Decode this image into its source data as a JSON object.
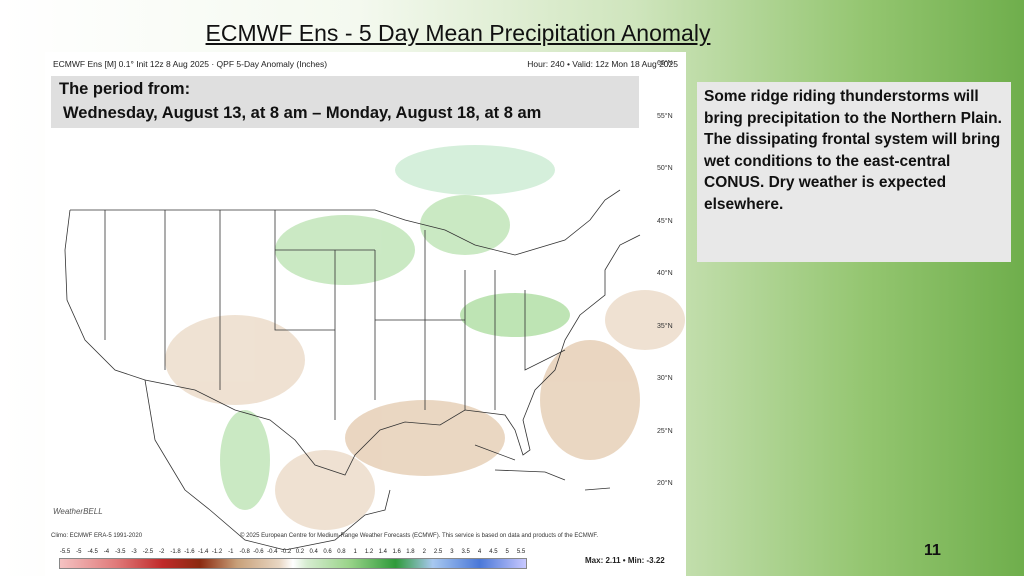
{
  "slide": {
    "title": "ECMWF Ens - 5 Day Mean Precipitation Anomaly",
    "page_number": "11",
    "side_text": "Some ridge riding thunderstorms will bring precipitation to the Northern Plain.  The dissipating frontal system will bring wet conditions to the east-central CONUS.  Dry weather is expected elsewhere."
  },
  "map": {
    "header_left": "ECMWF Ens [M] 0.1° Init 12z 8 Aug 2025 · QPF 5-Day Anomaly (Inches)",
    "header_right": "Hour: 240 • Valid: 12z Mon 18 Aug 2025",
    "period_line1": "The period from:",
    "period_line2": "Wednesday, August 13, at 8 am – Monday, August 18, at 8 am",
    "latitudes": [
      "60°N",
      "55°N",
      "50°N",
      "45°N",
      "40°N",
      "35°N",
      "30°N",
      "25°N",
      "20°N"
    ],
    "climo": "Climo: ECMWF ERA-5 1991-2020",
    "copyright": "© 2025 European Centre for Medium-Range Weather Forecasts (ECMWF). This service is based on data and products of the ECMWF.",
    "logo": "WeatherBELL",
    "colorbar_labels": [
      "-5.5",
      "-5",
      "-4.5",
      "-4",
      "-3.5",
      "-3",
      "-2.5",
      "-2",
      "-1.8",
      "-1.6",
      "-1.4",
      "-1.2",
      "-1",
      "-0.8",
      "-0.6",
      "-0.4",
      "-0.2",
      "0.2",
      "0.4",
      "0.6",
      "0.8",
      "1",
      "1.2",
      "1.4",
      "1.6",
      "1.8",
      "2",
      "2.5",
      "3",
      "3.5",
      "4",
      "4.5",
      "5",
      "5.5"
    ],
    "max_min": "Max: 2.11 • Min: -3.22"
  }
}
